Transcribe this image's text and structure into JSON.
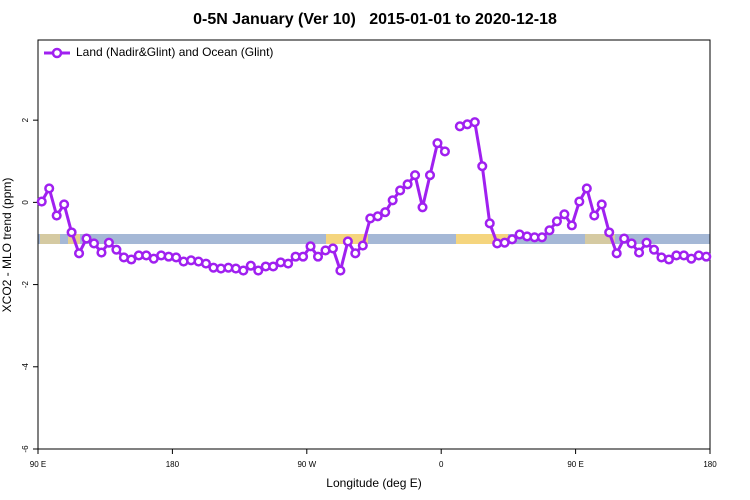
{
  "chart_data": {
    "type": "line",
    "title": "0-5N January (Ver 10)   2015-01-01 to 2020-12-18",
    "x_label": "Longitude (deg E)",
    "y_label": "XCO2 - MLO trend (ppm)",
    "x": [
      92.5,
      97.5,
      102.5,
      107.5,
      112.5,
      117.5,
      122.5,
      127.5,
      132.5,
      137.5,
      142.5,
      147.5,
      152.5,
      157.5,
      162.5,
      167.5,
      172.5,
      177.5,
      182.5,
      187.5,
      192.5,
      197.5,
      202.5,
      207.5,
      212.5,
      217.5,
      222.5,
      227.5,
      232.5,
      237.5,
      242.5,
      247.5,
      252.5,
      257.5,
      262.5,
      267.5,
      272.5,
      277.5,
      282.5,
      287.5,
      292.5,
      297.5,
      302.5,
      307.5,
      312.5,
      317.5,
      322.5,
      327.5,
      332.5,
      337.5,
      342.5,
      347.5,
      352.5,
      357.5,
      362.5,
      367.5,
      372.5,
      377.5,
      382.5,
      387.5,
      392.5,
      397.5,
      402.5,
      407.5,
      412.5,
      417.5,
      422.5,
      427.5,
      432.5,
      437.5,
      442.5,
      447.5,
      452.5,
      457.5,
      462.5,
      467.5,
      472.5,
      477.5,
      482.5,
      487.5,
      492.5,
      497.5,
      502.5,
      507.5,
      512.5,
      517.5,
      522.5,
      527.5,
      532.5,
      537.5
    ],
    "series": [
      {
        "name": "Land (Nadir&Glint) and Ocean (Glint)",
        "color": "#a020f0",
        "values": [
          0.02,
          0.34,
          -0.32,
          -0.05,
          -0.73,
          -1.24,
          -0.88,
          -1.0,
          -1.22,
          -0.98,
          -1.15,
          -1.34,
          -1.39,
          -1.29,
          -1.29,
          -1.37,
          -1.29,
          -1.32,
          -1.34,
          -1.44,
          -1.41,
          -1.44,
          -1.49,
          -1.59,
          -1.61,
          -1.59,
          -1.61,
          -1.66,
          -1.54,
          -1.66,
          -1.56,
          -1.56,
          -1.46,
          -1.49,
          -1.32,
          -1.32,
          -1.07,
          -1.32,
          -1.17,
          -1.12,
          -1.66,
          -0.95,
          -1.24,
          -1.05,
          -0.39,
          -0.34,
          -0.24,
          0.05,
          0.29,
          0.44,
          0.66,
          -0.12,
          0.66,
          1.44,
          1.24,
          null,
          1.85,
          1.9,
          1.95,
          0.88,
          -0.51,
          -1.0,
          -0.98,
          -0.9,
          -0.78,
          -0.83,
          -0.85,
          -0.85,
          -0.68,
          -0.46,
          -0.29,
          -0.56,
          0.02,
          0.34,
          -0.32,
          -0.05,
          -0.73,
          -1.24,
          -0.88,
          -1.0,
          -1.22,
          -0.98,
          -1.15,
          -1.34,
          -1.39,
          -1.29,
          -1.29,
          -1.37,
          -1.29,
          -1.32
        ]
      }
    ],
    "xlim": [
      90,
      540
    ],
    "xticks": [
      {
        "value": 90,
        "label": "90 E"
      },
      180,
      {
        "value": 270,
        "label": "90 W"
      },
      {
        "value": 360,
        "label": "0"
      },
      {
        "value": 450,
        "label": "90 E"
      },
      {
        "value": 540,
        "label": "180"
      }
    ],
    "ylim": [
      -6,
      3.95
    ],
    "yticks": [
      -6,
      -4,
      -2,
      0,
      2
    ]
  }
}
